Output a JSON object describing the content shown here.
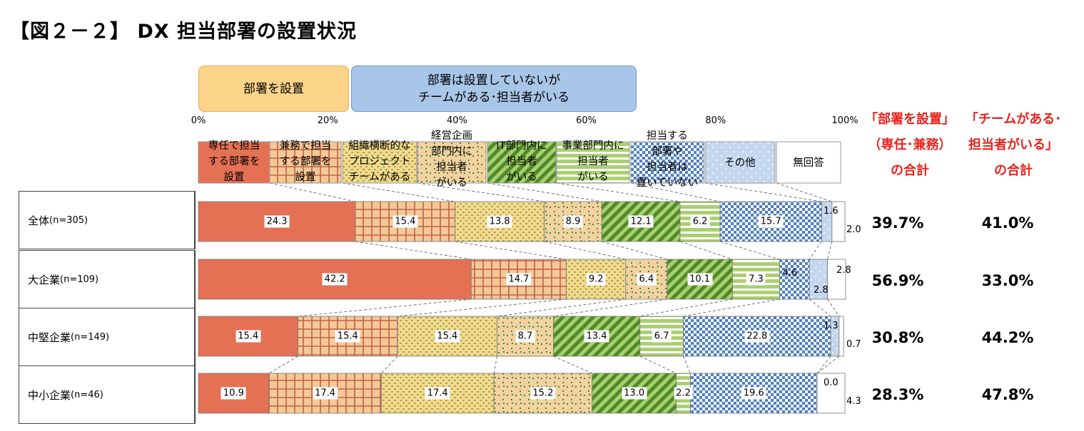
{
  "title": "【図２－２】 DX 担当部署の設置状況",
  "groups": {
    "dept": "部署を設置",
    "no_dept_l1": "部署は設置していないが",
    "no_dept_l2": "チームがある･担当者がいる"
  },
  "summary_headers": {
    "dept_l1": "「部署を設置」",
    "dept_l2": "（専任･兼務）",
    "dept_l3": "の合計",
    "team_l1": "「チームがある･",
    "team_l2": "担当者がいる」",
    "team_l3": "の合計"
  },
  "colors": {
    "c1": "#e57155",
    "c2": "#f4c996",
    "c3": "#f4d98f",
    "c4": "#f3d2a0",
    "c5": "#73a83c",
    "c6": "#a9cf6f",
    "c7": "#4f7fc0",
    "c8": "#c5d7ee",
    "c9": "#ffffff"
  },
  "chart_data": {
    "type": "bar",
    "orientation": "horizontal",
    "stacked": true,
    "title": "【図２－２】 DX 担当部署の設置状況",
    "xlim": [
      0,
      100
    ],
    "x_ticks": [
      "0%",
      "20%",
      "40%",
      "60%",
      "80%",
      "100%"
    ],
    "categories": [
      "全体",
      "大企業",
      "中堅企業",
      "中小企業"
    ],
    "category_n": [
      "(n=305)",
      "(n=109)",
      "(n=149)",
      "(n=46)"
    ],
    "series": [
      {
        "name": "専任で担当する部署を設置",
        "lines": [
          "専任で担当",
          "する部署を",
          "設置"
        ],
        "values": [
          24.3,
          42.2,
          15.4,
          10.9
        ]
      },
      {
        "name": "兼務で担当する部署を設置",
        "lines": [
          "兼務で担当",
          "する部署を",
          "設置"
        ],
        "values": [
          15.4,
          14.7,
          15.4,
          17.4
        ]
      },
      {
        "name": "組織横断的なプロジェクトチームがある",
        "lines": [
          "組織横断的な",
          "プロジェクト",
          "チームがある"
        ],
        "values": [
          13.8,
          9.2,
          15.4,
          17.4
        ]
      },
      {
        "name": "経営企画部門内に担当者がいる",
        "lines": [
          "経営企画",
          "部門内に",
          "担当者",
          "がいる"
        ],
        "values": [
          8.9,
          6.4,
          8.7,
          15.2
        ]
      },
      {
        "name": "IT部門内に担当者がいる",
        "lines": [
          "IT部門内に",
          "担当者",
          "がいる"
        ],
        "values": [
          12.1,
          10.1,
          13.4,
          13.0
        ]
      },
      {
        "name": "事業部門内に担当者がいる",
        "lines": [
          "事業部門内に",
          "担当者",
          "がいる"
        ],
        "values": [
          6.2,
          7.3,
          6.7,
          2.2
        ]
      },
      {
        "name": "担当する部署や担当者は置いていない",
        "lines": [
          "担当する",
          "部署や",
          "担当者は",
          "置いていない"
        ],
        "values": [
          15.7,
          4.6,
          22.8,
          19.6
        ]
      },
      {
        "name": "その他",
        "lines": [
          "その他"
        ],
        "values": [
          1.6,
          2.8,
          1.3,
          0.0
        ]
      },
      {
        "name": "無回答",
        "lines": [
          "無回答"
        ],
        "values": [
          2.0,
          2.8,
          0.7,
          4.3
        ]
      }
    ],
    "totals_dept": [
      "39.7%",
      "56.9%",
      "30.8%",
      "28.3%"
    ],
    "totals_team": [
      "41.0%",
      "33.0%",
      "44.2%",
      "47.8%"
    ]
  }
}
